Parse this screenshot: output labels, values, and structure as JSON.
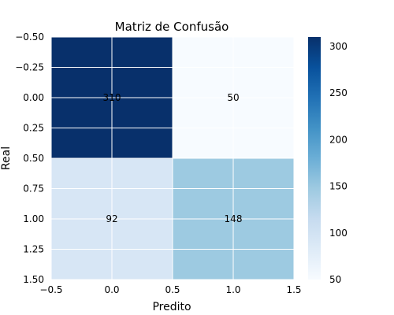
{
  "chart_data": {
    "type": "heatmap",
    "title": "Matriz de Confusão",
    "xlabel": "Predito",
    "ylabel": "Real",
    "matrix": [
      [
        310,
        50
      ],
      [
        92,
        148
      ]
    ],
    "cell_labels": [
      [
        "310",
        "50"
      ],
      [
        "92",
        "148"
      ]
    ],
    "xlim": [
      -0.5,
      1.5
    ],
    "ylim": [
      -0.5,
      1.5
    ],
    "x_ticks": [
      -0.5,
      0.0,
      0.5,
      1.0,
      1.5
    ],
    "x_tick_labels": [
      "−0.5",
      "0.0",
      "0.5",
      "1.0",
      "1.5"
    ],
    "y_ticks": [
      -0.5,
      -0.25,
      0.0,
      0.25,
      0.5,
      0.75,
      1.0,
      1.25,
      1.5
    ],
    "y_tick_labels": [
      "−0.50",
      "−0.25",
      "0.00",
      "0.25",
      "0.50",
      "0.75",
      "1.00",
      "1.25",
      "1.50"
    ],
    "y_inverted": true,
    "grid": true,
    "colormap": "Blues",
    "colorbar": {
      "vmin": 50,
      "vmax": 310,
      "ticks": [
        50,
        100,
        150,
        200,
        250,
        300
      ],
      "tick_labels": [
        "50",
        "100",
        "150",
        "200",
        "250",
        "300"
      ]
    }
  }
}
